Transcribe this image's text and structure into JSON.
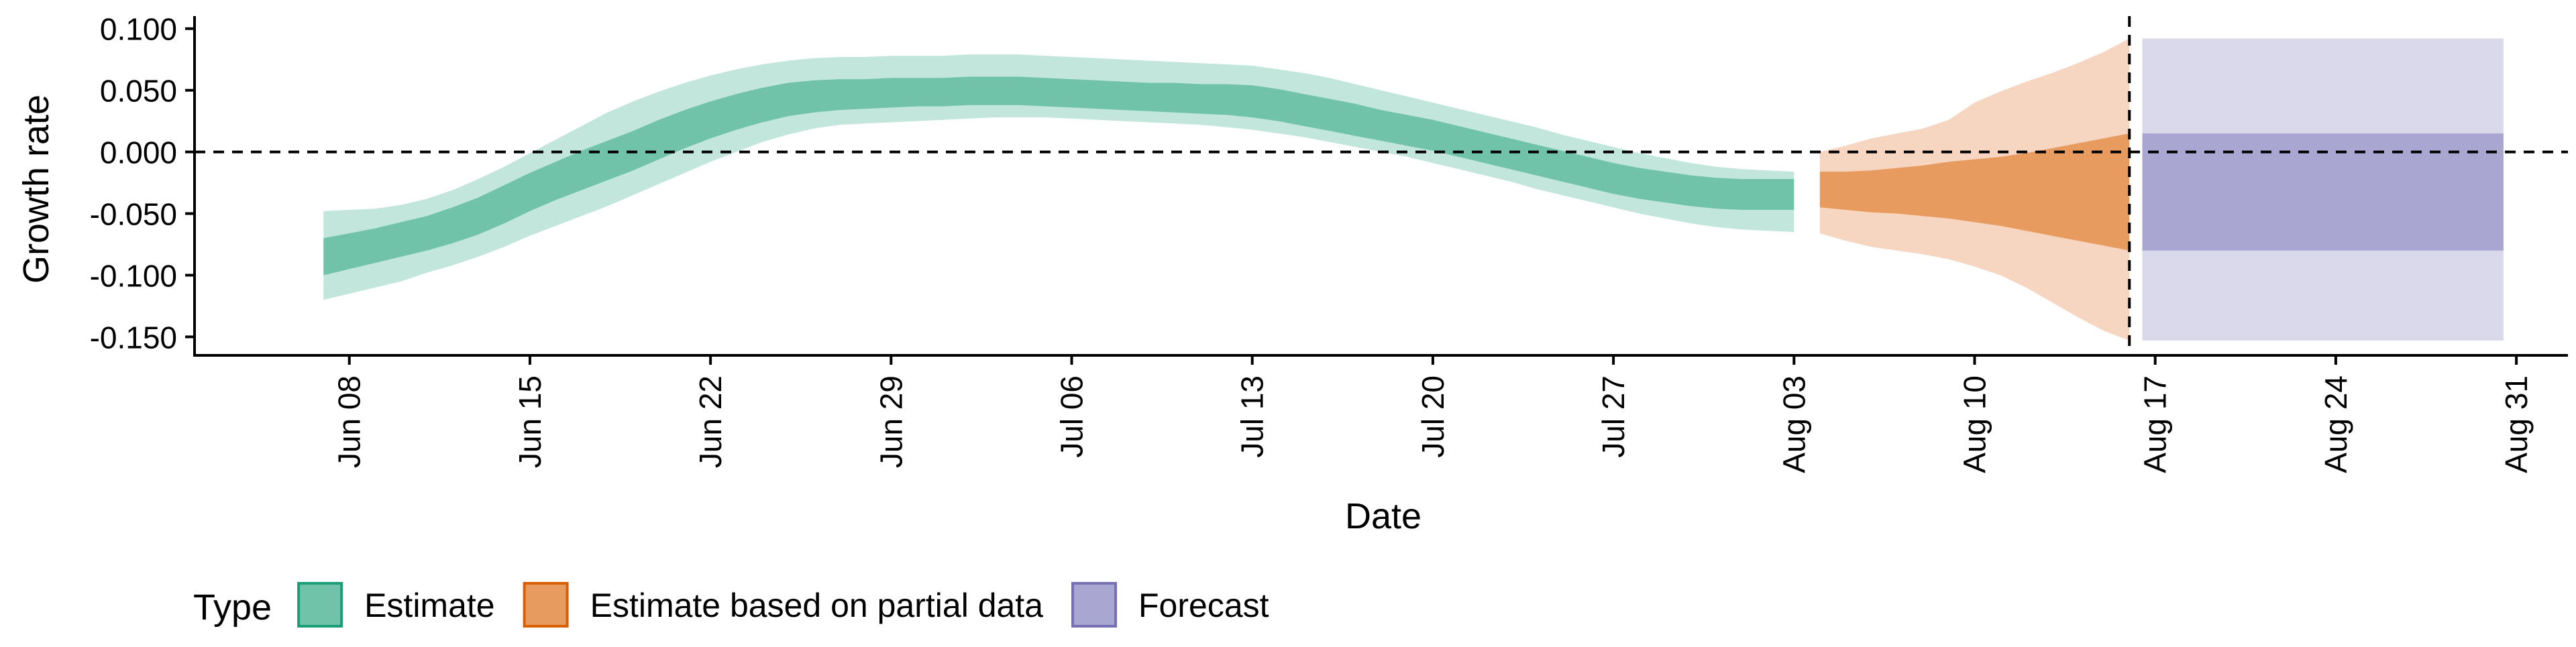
{
  "chart_data": {
    "type": "area",
    "xlabel": "Date",
    "ylabel": "Growth rate",
    "x_axis": {
      "type": "date",
      "range": [
        "2020-06-02",
        "2020-09-02"
      ],
      "ticks": [
        {
          "date": "2020-06-08",
          "label": "Jun 08"
        },
        {
          "date": "2020-06-15",
          "label": "Jun 15"
        },
        {
          "date": "2020-06-22",
          "label": "Jun 22"
        },
        {
          "date": "2020-06-29",
          "label": "Jun 29"
        },
        {
          "date": "2020-07-06",
          "label": "Jul 06"
        },
        {
          "date": "2020-07-13",
          "label": "Jul 13"
        },
        {
          "date": "2020-07-20",
          "label": "Jul 20"
        },
        {
          "date": "2020-07-27",
          "label": "Jul 27"
        },
        {
          "date": "2020-08-03",
          "label": "Aug 03"
        },
        {
          "date": "2020-08-10",
          "label": "Aug 10"
        },
        {
          "date": "2020-08-17",
          "label": "Aug 17"
        },
        {
          "date": "2020-08-24",
          "label": "Aug 24"
        },
        {
          "date": "2020-08-31",
          "label": "Aug 31"
        }
      ]
    },
    "y_axis": {
      "range": [
        -0.165,
        0.108
      ],
      "ticks": [
        {
          "value": 0.1,
          "label": "0.100"
        },
        {
          "value": 0.05,
          "label": "0.050"
        },
        {
          "value": 0.0,
          "label": "0.000"
        },
        {
          "value": -0.05,
          "label": "-0.050"
        },
        {
          "value": -0.1,
          "label": "-0.100"
        },
        {
          "value": -0.15,
          "label": "-0.150"
        }
      ]
    },
    "reference_lines": [
      {
        "axis": "y",
        "value": 0.0,
        "style": "dashed"
      },
      {
        "axis": "x",
        "value": "2020-08-16",
        "style": "dashed"
      }
    ],
    "legend": {
      "title": "Type",
      "position": "bottom-left",
      "entries": [
        "Estimate",
        "Estimate based on partial data",
        "Forecast"
      ]
    },
    "colors": {
      "estimate": "#1b9e77",
      "estimate_light": "#c2e6dc",
      "estimate_dark": "#70c2a8",
      "partial": "#d95f02",
      "partial_light": "#f6d5c1",
      "partial_dark": "#e89b5e",
      "forecast": "#7570b3",
      "forecast_light": "#dad9eb",
      "forecast_dark": "#a9a6d2"
    },
    "series": [
      {
        "type": "Estimate",
        "x": [
          "2020-06-07",
          "2020-06-08",
          "2020-06-09",
          "2020-06-10",
          "2020-06-11",
          "2020-06-12",
          "2020-06-13",
          "2020-06-14",
          "2020-06-15",
          "2020-06-16",
          "2020-06-17",
          "2020-06-18",
          "2020-06-19",
          "2020-06-20",
          "2020-06-21",
          "2020-06-22",
          "2020-06-23",
          "2020-06-24",
          "2020-06-25",
          "2020-06-26",
          "2020-06-27",
          "2020-06-28",
          "2020-06-29",
          "2020-06-30",
          "2020-07-01",
          "2020-07-02",
          "2020-07-03",
          "2020-07-04",
          "2020-07-05",
          "2020-07-06",
          "2020-07-07",
          "2020-07-08",
          "2020-07-09",
          "2020-07-10",
          "2020-07-11",
          "2020-07-12",
          "2020-07-13",
          "2020-07-14",
          "2020-07-15",
          "2020-07-16",
          "2020-07-17",
          "2020-07-18",
          "2020-07-19",
          "2020-07-20",
          "2020-07-21",
          "2020-07-22",
          "2020-07-23",
          "2020-07-24",
          "2020-07-25",
          "2020-07-26",
          "2020-07-27",
          "2020-07-28",
          "2020-07-29",
          "2020-07-30",
          "2020-07-31",
          "2020-08-01",
          "2020-08-02",
          "2020-08-03"
        ],
        "lower_90": [
          -0.12,
          -0.115,
          -0.11,
          -0.105,
          -0.098,
          -0.092,
          -0.085,
          -0.077,
          -0.068,
          -0.06,
          -0.052,
          -0.044,
          -0.035,
          -0.026,
          -0.017,
          -0.008,
          0.0,
          0.008,
          0.014,
          0.019,
          0.022,
          0.023,
          0.024,
          0.025,
          0.026,
          0.027,
          0.028,
          0.028,
          0.028,
          0.027,
          0.026,
          0.025,
          0.024,
          0.023,
          0.022,
          0.02,
          0.018,
          0.015,
          0.012,
          0.008,
          0.004,
          0.0,
          -0.004,
          -0.009,
          -0.014,
          -0.019,
          -0.024,
          -0.03,
          -0.035,
          -0.04,
          -0.045,
          -0.05,
          -0.054,
          -0.058,
          -0.061,
          -0.063,
          -0.064,
          -0.065
        ],
        "lower_50": [
          -0.1,
          -0.095,
          -0.09,
          -0.085,
          -0.08,
          -0.074,
          -0.067,
          -0.058,
          -0.048,
          -0.039,
          -0.031,
          -0.023,
          -0.015,
          -0.006,
          0.003,
          0.011,
          0.018,
          0.024,
          0.029,
          0.032,
          0.034,
          0.035,
          0.036,
          0.037,
          0.037,
          0.038,
          0.038,
          0.038,
          0.037,
          0.036,
          0.035,
          0.034,
          0.033,
          0.032,
          0.031,
          0.03,
          0.028,
          0.025,
          0.021,
          0.017,
          0.013,
          0.009,
          0.005,
          0.001,
          -0.004,
          -0.009,
          -0.014,
          -0.019,
          -0.024,
          -0.029,
          -0.034,
          -0.038,
          -0.041,
          -0.044,
          -0.046,
          -0.047,
          -0.047,
          -0.047
        ],
        "upper_50": [
          -0.07,
          -0.066,
          -0.062,
          -0.057,
          -0.052,
          -0.045,
          -0.037,
          -0.027,
          -0.017,
          -0.008,
          0.001,
          0.009,
          0.017,
          0.026,
          0.034,
          0.041,
          0.047,
          0.052,
          0.056,
          0.058,
          0.059,
          0.059,
          0.06,
          0.06,
          0.06,
          0.061,
          0.061,
          0.061,
          0.06,
          0.059,
          0.058,
          0.057,
          0.056,
          0.056,
          0.055,
          0.055,
          0.054,
          0.051,
          0.047,
          0.043,
          0.039,
          0.034,
          0.03,
          0.026,
          0.021,
          0.016,
          0.011,
          0.006,
          0.001,
          -0.004,
          -0.009,
          -0.013,
          -0.016,
          -0.019,
          -0.021,
          -0.022,
          -0.022,
          -0.022
        ],
        "upper_90": [
          -0.048,
          -0.047,
          -0.046,
          -0.043,
          -0.038,
          -0.031,
          -0.022,
          -0.012,
          -0.001,
          0.01,
          0.021,
          0.032,
          0.041,
          0.049,
          0.056,
          0.062,
          0.067,
          0.071,
          0.074,
          0.076,
          0.077,
          0.077,
          0.078,
          0.078,
          0.078,
          0.079,
          0.079,
          0.079,
          0.078,
          0.077,
          0.076,
          0.075,
          0.074,
          0.073,
          0.072,
          0.071,
          0.07,
          0.067,
          0.064,
          0.06,
          0.055,
          0.05,
          0.045,
          0.04,
          0.035,
          0.03,
          0.025,
          0.02,
          0.014,
          0.009,
          0.004,
          -0.001,
          -0.005,
          -0.009,
          -0.012,
          -0.014,
          -0.015,
          -0.016
        ]
      },
      {
        "type": "Estimate based on partial data",
        "x": [
          "2020-08-04",
          "2020-08-05",
          "2020-08-06",
          "2020-08-07",
          "2020-08-08",
          "2020-08-09",
          "2020-08-10",
          "2020-08-11",
          "2020-08-12",
          "2020-08-13",
          "2020-08-14",
          "2020-08-15",
          "2020-08-16"
        ],
        "lower_90": [
          -0.066,
          -0.072,
          -0.077,
          -0.08,
          -0.083,
          -0.087,
          -0.093,
          -0.1,
          -0.11,
          -0.122,
          -0.134,
          -0.145,
          -0.153
        ],
        "lower_50": [
          -0.045,
          -0.047,
          -0.049,
          -0.05,
          -0.052,
          -0.054,
          -0.057,
          -0.06,
          -0.064,
          -0.068,
          -0.072,
          -0.076,
          -0.08
        ],
        "upper_50": [
          -0.016,
          -0.016,
          -0.015,
          -0.013,
          -0.011,
          -0.008,
          -0.006,
          -0.004,
          -0.001,
          0.003,
          0.007,
          0.011,
          0.015
        ],
        "upper_90": [
          0.0,
          0.005,
          0.011,
          0.015,
          0.019,
          0.026,
          0.04,
          0.049,
          0.057,
          0.064,
          0.072,
          0.081,
          0.092
        ]
      },
      {
        "type": "Forecast",
        "x": [
          "2020-08-17",
          "2020-08-18",
          "2020-08-19",
          "2020-08-20",
          "2020-08-21",
          "2020-08-22",
          "2020-08-23",
          "2020-08-24",
          "2020-08-25",
          "2020-08-26",
          "2020-08-27",
          "2020-08-28",
          "2020-08-29",
          "2020-08-30"
        ],
        "lower_90": [
          -0.153,
          -0.153,
          -0.153,
          -0.153,
          -0.153,
          -0.153,
          -0.153,
          -0.153,
          -0.153,
          -0.153,
          -0.153,
          -0.153,
          -0.153,
          -0.153
        ],
        "lower_50": [
          -0.08,
          -0.08,
          -0.08,
          -0.08,
          -0.08,
          -0.08,
          -0.08,
          -0.08,
          -0.08,
          -0.08,
          -0.08,
          -0.08,
          -0.08,
          -0.08
        ],
        "upper_50": [
          0.015,
          0.015,
          0.015,
          0.015,
          0.015,
          0.015,
          0.015,
          0.015,
          0.015,
          0.015,
          0.015,
          0.015,
          0.015,
          0.015
        ],
        "upper_90": [
          0.092,
          0.092,
          0.092,
          0.092,
          0.092,
          0.092,
          0.092,
          0.092,
          0.092,
          0.092,
          0.092,
          0.092,
          0.092,
          0.092
        ]
      }
    ]
  }
}
